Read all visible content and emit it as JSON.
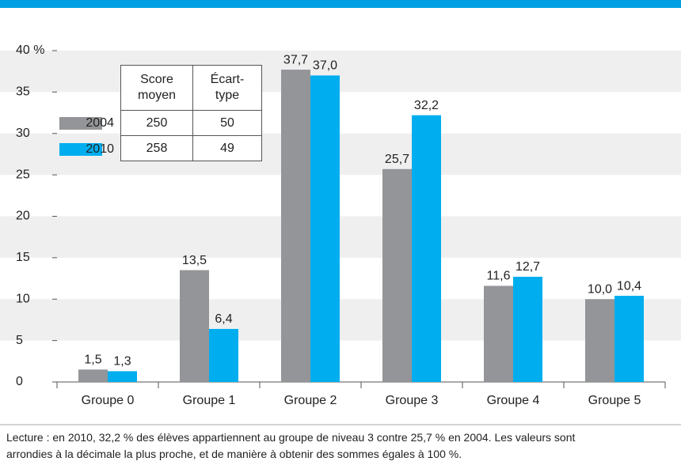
{
  "chart_data": {
    "type": "bar",
    "categories": [
      "Groupe 0",
      "Groupe 1",
      "Groupe 2",
      "Groupe 3",
      "Groupe 4",
      "Groupe 5"
    ],
    "series": [
      {
        "name": "2004",
        "color": "#939598",
        "values": [
          1.5,
          13.5,
          37.7,
          25.7,
          11.6,
          10.0
        ],
        "value_labels": [
          "1,5",
          "13,5",
          "37,7",
          "25,7",
          "11,6",
          "10,0"
        ]
      },
      {
        "name": "2010",
        "color": "#00aeef",
        "values": [
          1.3,
          6.4,
          37.0,
          32.2,
          12.7,
          10.4
        ],
        "value_labels": [
          "1,3",
          "6,4",
          "37,0",
          "32,2",
          "12,7",
          "10,4"
        ]
      }
    ],
    "ylim": [
      0,
      40
    ],
    "yticks": [
      0,
      5,
      10,
      15,
      20,
      25,
      30,
      {
        "value": 40,
        "label": "40 %"
      },
      35
    ],
    "grid": "bands",
    "legend_table": {
      "columns": [
        "Score moyen",
        "Écart-type"
      ],
      "rows": [
        [
          250,
          50
        ],
        [
          258,
          49
        ]
      ]
    },
    "footnote": [
      "Lecture : en 2010, 32,2 % des élèves appartiennent au groupe de niveau 3 contre 25,7 % en 2004. Les valeurs sont",
      "arrondies à la décimale la plus proche, et de manière à obtenir des sommes égales à 100 %."
    ]
  }
}
